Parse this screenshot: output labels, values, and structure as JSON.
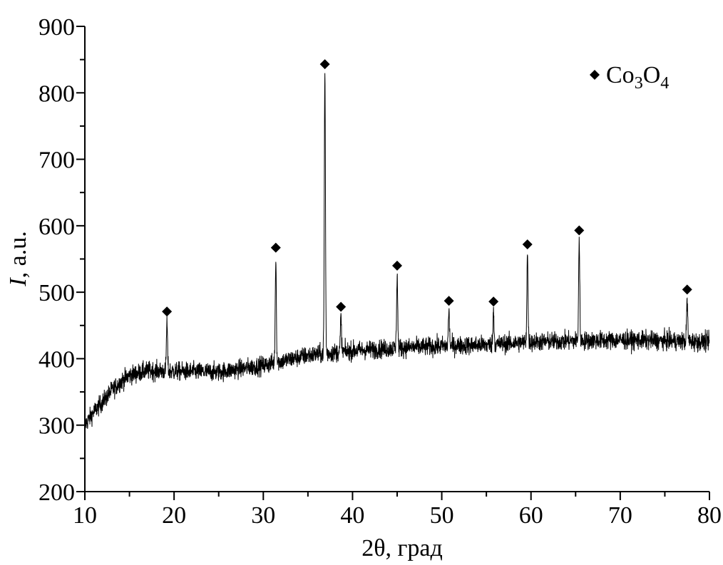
{
  "chart_data": {
    "type": "line",
    "xlabel": "2θ, град",
    "ylabel": "I, a.u.",
    "ylabel_italic_part": "I",
    "ylabel_rest": ", a.u.",
    "xlim": [
      10,
      80
    ],
    "ylim": [
      200,
      900
    ],
    "x_ticks": [
      10,
      20,
      30,
      40,
      50,
      60,
      70,
      80
    ],
    "y_ticks": [
      200,
      300,
      400,
      500,
      600,
      700,
      800,
      900
    ],
    "grid": false,
    "legend": {
      "placement": "top-right",
      "marker": "diamond",
      "label_parts": [
        {
          "text": "Co",
          "sub": false
        },
        {
          "text": "3",
          "sub": true
        },
        {
          "text": "O",
          "sub": false
        },
        {
          "text": "4",
          "sub": true
        }
      ]
    },
    "baseline": {
      "x": [
        10,
        10.5,
        11,
        12,
        13,
        14,
        15,
        17,
        20,
        25,
        30,
        35,
        40,
        45,
        50,
        55,
        60,
        65,
        70,
        75,
        80
      ],
      "y": [
        300,
        310,
        320,
        335,
        352,
        365,
        375,
        382,
        381,
        380,
        390,
        405,
        412,
        416,
        419,
        421,
        425,
        427,
        428,
        427,
        425
      ]
    },
    "noise_amplitude": 22,
    "peaks": [
      {
        "x": 19.2,
        "y": 455,
        "marker_y": 471
      },
      {
        "x": 31.4,
        "y": 550,
        "marker_y": 567
      },
      {
        "x": 36.9,
        "y": 830,
        "marker_y": 843
      },
      {
        "x": 38.7,
        "y": 462,
        "marker_y": 478
      },
      {
        "x": 45.0,
        "y": 527,
        "marker_y": 540
      },
      {
        "x": 50.8,
        "y": 472,
        "marker_y": 487
      },
      {
        "x": 55.8,
        "y": 472,
        "marker_y": 486
      },
      {
        "x": 59.6,
        "y": 558,
        "marker_y": 572
      },
      {
        "x": 65.4,
        "y": 578,
        "marker_y": 593
      },
      {
        "x": 77.5,
        "y": 488,
        "marker_y": 504
      }
    ]
  }
}
